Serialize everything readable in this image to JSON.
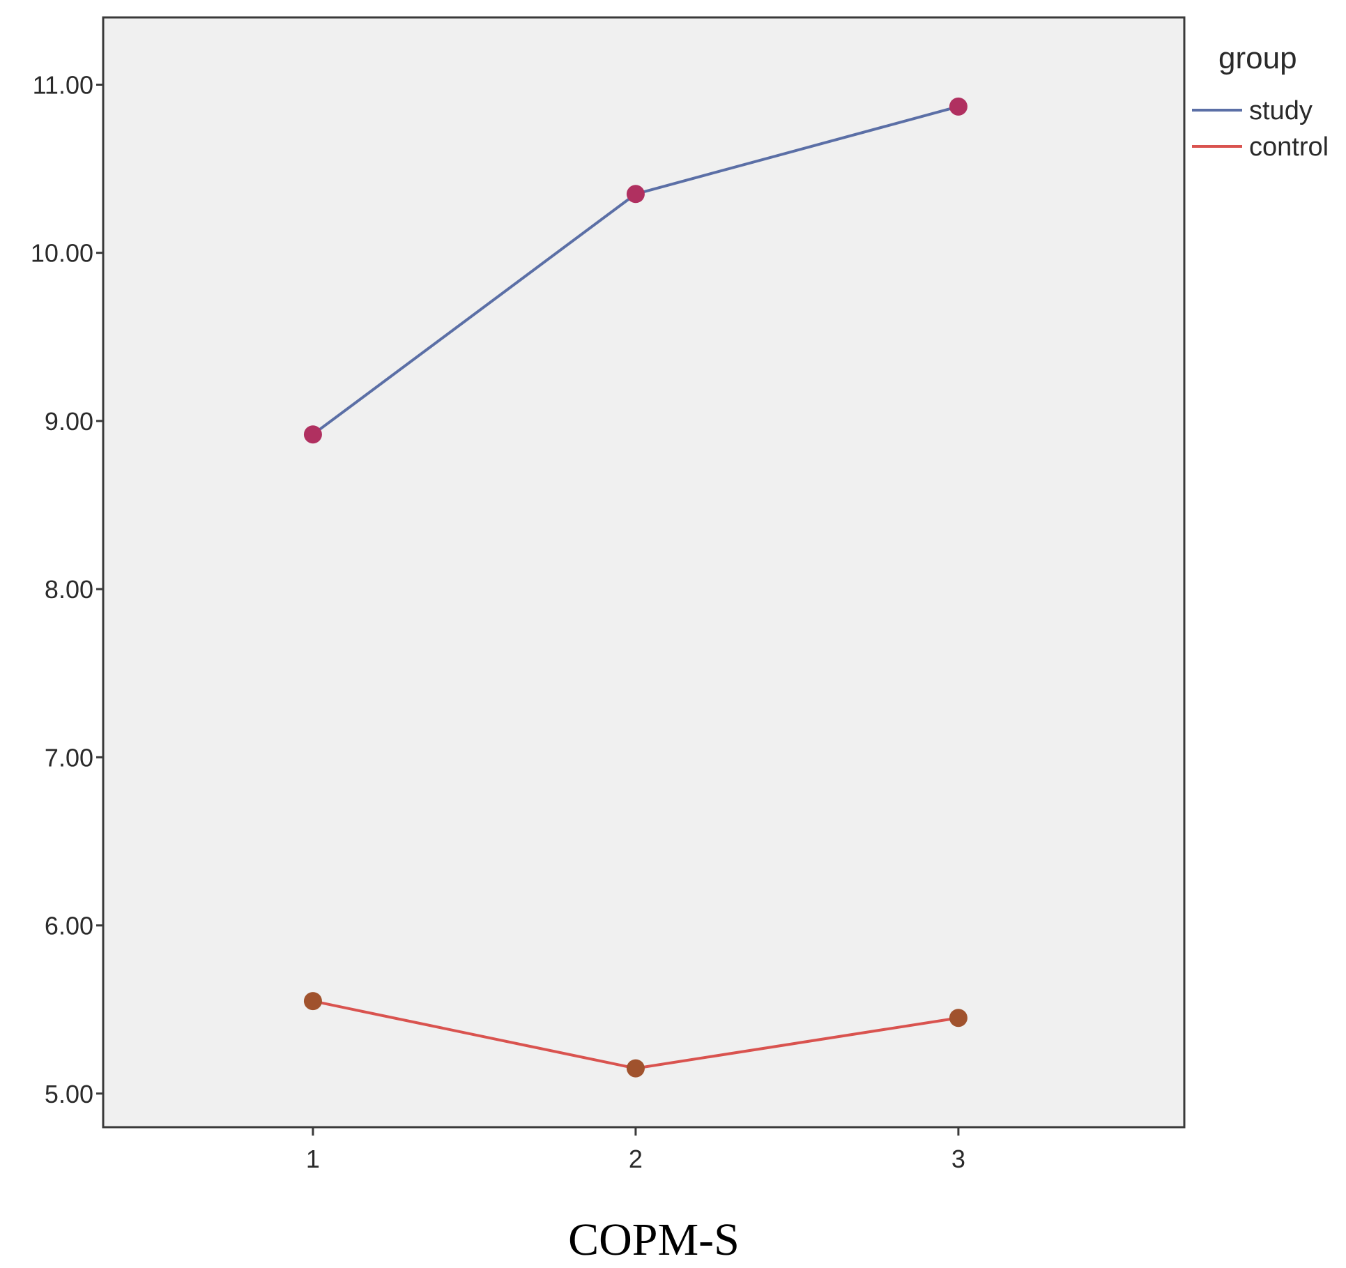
{
  "chart_data": {
    "type": "line",
    "x": [
      1,
      2,
      3
    ],
    "x_tick_labels": [
      "1",
      "2",
      "3"
    ],
    "y_tick_values": [
      5,
      6,
      7,
      8,
      9,
      10,
      11
    ],
    "y_tick_labels": [
      "5.00",
      "6.00",
      "7.00",
      "8.00",
      "9.00",
      "10.00",
      "11.00"
    ],
    "ylim": [
      4.8,
      11.4
    ],
    "xlim": [
      0.35,
      3.7
    ],
    "series": [
      {
        "name": "study",
        "values": [
          8.92,
          10.35,
          10.87
        ],
        "color": "#5b6fa6",
        "marker_color": "#b03060"
      },
      {
        "name": "control",
        "values": [
          5.55,
          5.15,
          5.45
        ],
        "color": "#d9534f",
        "marker_color": "#a0522d"
      }
    ],
    "legend_title": "group",
    "legend_position": "right",
    "xlabel": "COPM-S",
    "plot_background": "#f0f0f0",
    "grid": false
  }
}
